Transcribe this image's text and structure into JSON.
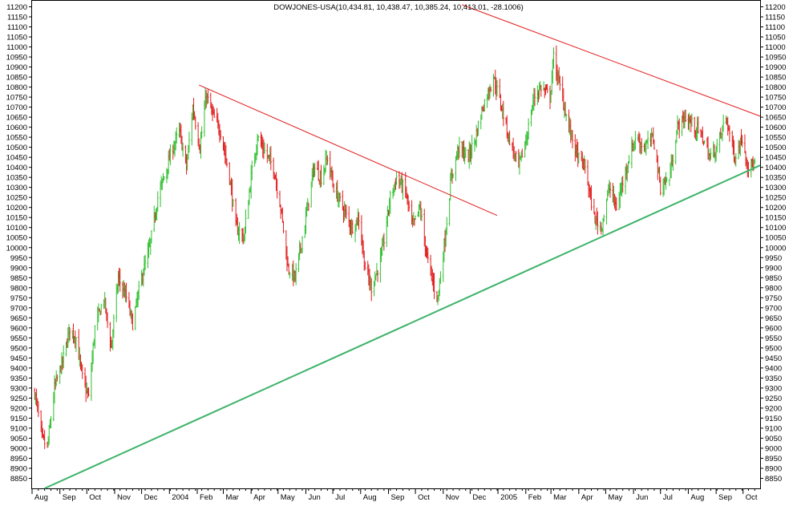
{
  "chart_data": {
    "type": "ohlc",
    "title": "DOWJONES-USA(10,434.81, 10,438.47, 10,385.24, 10,413.01, -28.1006)",
    "xlabel": "",
    "ylabel": "",
    "ylim": [
      8800,
      11230
    ],
    "y_ticks": [
      8850,
      8900,
      8950,
      9000,
      9050,
      9100,
      9150,
      9200,
      9250,
      9300,
      9350,
      9400,
      9450,
      9500,
      9550,
      9600,
      9650,
      9700,
      9750,
      9800,
      9850,
      9900,
      9950,
      10000,
      10050,
      10100,
      10150,
      10200,
      10250,
      10300,
      10350,
      10400,
      10450,
      10500,
      10550,
      10600,
      10650,
      10700,
      10750,
      10800,
      10850,
      10900,
      10950,
      11000,
      11050,
      11100,
      11150,
      11200
    ],
    "y_tick_labels": [
      "8850",
      "8900",
      "8950",
      "9000",
      "9050",
      "9100",
      "9150",
      "9200",
      "9250",
      "9300",
      "9350",
      "9400",
      "9450",
      "9500",
      "9550",
      "9600",
      "9650",
      "9700",
      "9750",
      "9800",
      "9850",
      "9900",
      "9950",
      "10000",
      "10050",
      "10100",
      "10150",
      "10200",
      "10250",
      "10300",
      "10350",
      "10400",
      "10450",
      "10500",
      "10550",
      "10600",
      "10650",
      "10700",
      "10750",
      "10800",
      "10850",
      "10900",
      "10950",
      "11000",
      "11050",
      "11100",
      "11150",
      "11200"
    ],
    "x_range": [
      "2003-08-01",
      "2005-10-20"
    ],
    "month_ticks": [
      {
        "date": "2003-08-01",
        "label": "Aug"
      },
      {
        "date": "2003-09-01",
        "label": "Sep"
      },
      {
        "date": "2003-10-01",
        "label": "Oct"
      },
      {
        "date": "2003-11-01",
        "label": "Nov"
      },
      {
        "date": "2003-12-01",
        "label": "Dec"
      },
      {
        "date": "2004-01-01",
        "label": "2004"
      },
      {
        "date": "2004-02-01",
        "label": "Feb"
      },
      {
        "date": "2004-03-01",
        "label": "Mar"
      },
      {
        "date": "2004-04-01",
        "label": "Apr"
      },
      {
        "date": "2004-05-01",
        "label": "May"
      },
      {
        "date": "2004-06-01",
        "label": "Jun"
      },
      {
        "date": "2004-07-01",
        "label": "Jul"
      },
      {
        "date": "2004-08-01",
        "label": "Aug"
      },
      {
        "date": "2004-09-01",
        "label": "Sep"
      },
      {
        "date": "2004-10-01",
        "label": "Oct"
      },
      {
        "date": "2004-11-01",
        "label": "Nov"
      },
      {
        "date": "2004-12-01",
        "label": "Dec"
      },
      {
        "date": "2005-01-01",
        "label": "2005"
      },
      {
        "date": "2005-02-01",
        "label": "Feb"
      },
      {
        "date": "2005-03-01",
        "label": "Mar"
      },
      {
        "date": "2005-04-01",
        "label": "Apr"
      },
      {
        "date": "2005-05-01",
        "label": "May"
      },
      {
        "date": "2005-06-01",
        "label": "Jun"
      },
      {
        "date": "2005-07-01",
        "label": "Jul"
      },
      {
        "date": "2005-08-01",
        "label": "Aug"
      },
      {
        "date": "2005-09-01",
        "label": "Sep"
      },
      {
        "date": "2005-10-01",
        "label": "Oct"
      }
    ],
    "close_path": [
      {
        "date": "2003-08-04",
        "close": 9280
      },
      {
        "date": "2003-08-12",
        "close": 9050
      },
      {
        "date": "2003-08-18",
        "close": 9000
      },
      {
        "date": "2003-08-26",
        "close": 9300
      },
      {
        "date": "2003-09-05",
        "close": 9450
      },
      {
        "date": "2003-09-12",
        "close": 9600
      },
      {
        "date": "2003-09-19",
        "close": 9550
      },
      {
        "date": "2003-09-26",
        "close": 9350
      },
      {
        "date": "2003-10-03",
        "close": 9250
      },
      {
        "date": "2003-10-10",
        "close": 9600
      },
      {
        "date": "2003-10-20",
        "close": 9750
      },
      {
        "date": "2003-10-28",
        "close": 9500
      },
      {
        "date": "2003-11-05",
        "close": 9850
      },
      {
        "date": "2003-11-14",
        "close": 9750
      },
      {
        "date": "2003-11-21",
        "close": 9620
      },
      {
        "date": "2003-12-01",
        "close": 9850
      },
      {
        "date": "2003-12-10",
        "close": 10000
      },
      {
        "date": "2003-12-19",
        "close": 10250
      },
      {
        "date": "2004-01-05",
        "close": 10500
      },
      {
        "date": "2004-01-12",
        "close": 10580
      },
      {
        "date": "2004-01-20",
        "close": 10400
      },
      {
        "date": "2004-01-27",
        "close": 10700
      },
      {
        "date": "2004-02-04",
        "close": 10500
      },
      {
        "date": "2004-02-11",
        "close": 10760
      },
      {
        "date": "2004-02-19",
        "close": 10650
      },
      {
        "date": "2004-02-27",
        "close": 10580
      },
      {
        "date": "2004-03-08",
        "close": 10350
      },
      {
        "date": "2004-03-15",
        "close": 10100
      },
      {
        "date": "2004-03-24",
        "close": 10050
      },
      {
        "date": "2004-04-01",
        "close": 10350
      },
      {
        "date": "2004-04-08",
        "close": 10550
      },
      {
        "date": "2004-04-16",
        "close": 10480
      },
      {
        "date": "2004-04-26",
        "close": 10400
      },
      {
        "date": "2004-05-04",
        "close": 10200
      },
      {
        "date": "2004-05-12",
        "close": 9900
      },
      {
        "date": "2004-05-20",
        "close": 9850
      },
      {
        "date": "2004-06-01",
        "close": 10150
      },
      {
        "date": "2004-06-10",
        "close": 10400
      },
      {
        "date": "2004-06-18",
        "close": 10350
      },
      {
        "date": "2004-06-25",
        "close": 10450
      },
      {
        "date": "2004-07-02",
        "close": 10300
      },
      {
        "date": "2004-07-12",
        "close": 10200
      },
      {
        "date": "2004-07-22",
        "close": 10100
      },
      {
        "date": "2004-07-30",
        "close": 10150
      },
      {
        "date": "2004-08-06",
        "close": 9900
      },
      {
        "date": "2004-08-13",
        "close": 9800
      },
      {
        "date": "2004-08-24",
        "close": 9950
      },
      {
        "date": "2004-09-03",
        "close": 10250
      },
      {
        "date": "2004-09-10",
        "close": 10350
      },
      {
        "date": "2004-09-20",
        "close": 10280
      },
      {
        "date": "2004-09-28",
        "close": 10100
      },
      {
        "date": "2004-10-06",
        "close": 10200
      },
      {
        "date": "2004-10-14",
        "close": 9950
      },
      {
        "date": "2004-10-22",
        "close": 9800
      },
      {
        "date": "2004-10-26",
        "close": 9750
      },
      {
        "date": "2004-11-03",
        "close": 10050
      },
      {
        "date": "2004-11-10",
        "close": 10350
      },
      {
        "date": "2004-11-18",
        "close": 10500
      },
      {
        "date": "2004-11-29",
        "close": 10450
      },
      {
        "date": "2004-12-07",
        "close": 10550
      },
      {
        "date": "2004-12-15",
        "close": 10700
      },
      {
        "date": "2004-12-27",
        "close": 10850
      },
      {
        "date": "2005-01-05",
        "close": 10700
      },
      {
        "date": "2005-01-13",
        "close": 10550
      },
      {
        "date": "2005-01-24",
        "close": 10400
      },
      {
        "date": "2005-02-02",
        "close": 10550
      },
      {
        "date": "2005-02-10",
        "close": 10750
      },
      {
        "date": "2005-02-18",
        "close": 10800
      },
      {
        "date": "2005-02-28",
        "close": 10750
      },
      {
        "date": "2005-03-04",
        "close": 10950
      },
      {
        "date": "2005-03-11",
        "close": 10800
      },
      {
        "date": "2005-03-21",
        "close": 10600
      },
      {
        "date": "2005-03-31",
        "close": 10450
      },
      {
        "date": "2005-04-08",
        "close": 10400
      },
      {
        "date": "2005-04-18",
        "close": 10150
      },
      {
        "date": "2005-04-26",
        "close": 10100
      },
      {
        "date": "2005-05-05",
        "close": 10300
      },
      {
        "date": "2005-05-13",
        "close": 10200
      },
      {
        "date": "2005-05-24",
        "close": 10400
      },
      {
        "date": "2005-06-03",
        "close": 10550
      },
      {
        "date": "2005-06-13",
        "close": 10500
      },
      {
        "date": "2005-06-23",
        "close": 10550
      },
      {
        "date": "2005-07-01",
        "close": 10300
      },
      {
        "date": "2005-07-11",
        "close": 10350
      },
      {
        "date": "2005-07-20",
        "close": 10600
      },
      {
        "date": "2005-07-29",
        "close": 10650
      },
      {
        "date": "2005-08-08",
        "close": 10600
      },
      {
        "date": "2005-08-17",
        "close": 10550
      },
      {
        "date": "2005-08-25",
        "close": 10450
      },
      {
        "date": "2005-09-02",
        "close": 10500
      },
      {
        "date": "2005-09-12",
        "close": 10650
      },
      {
        "date": "2005-09-22",
        "close": 10450
      },
      {
        "date": "2005-09-30",
        "close": 10550
      },
      {
        "date": "2005-10-07",
        "close": 10400
      },
      {
        "date": "2005-10-14",
        "close": 10413
      }
    ],
    "trendlines": [
      {
        "color": "#e21b1b",
        "width": 1,
        "from": {
          "date": "2004-02-03",
          "value": 10810
        },
        "to": {
          "date": "2004-12-31",
          "value": 10160
        }
      },
      {
        "color": "#e21b1b",
        "width": 1,
        "from": {
          "date": "2004-11-22",
          "value": 11210
        },
        "to": {
          "date": "2005-10-20",
          "value": 10655
        }
      },
      {
        "color": "#3db369",
        "width": 2,
        "from": {
          "date": "2003-08-15",
          "value": 8800
        },
        "to": {
          "date": "2005-10-20",
          "value": 10410
        }
      }
    ],
    "up_color": "#2fbf2f",
    "down_color": "#e21b1b"
  }
}
